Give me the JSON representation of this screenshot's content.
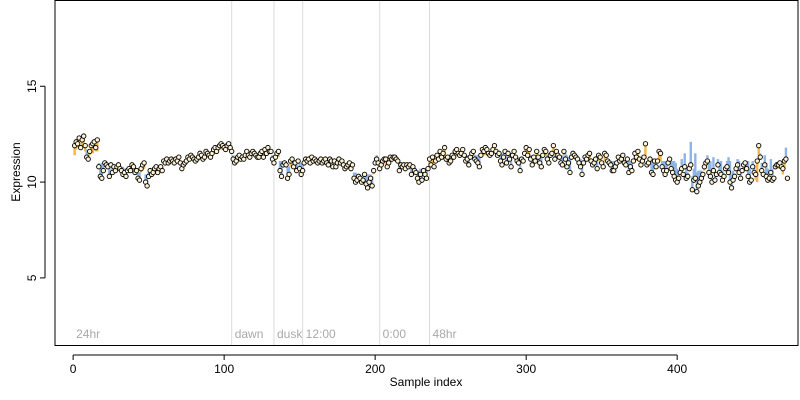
{
  "chart_data": {
    "type": "scatter",
    "xlabel": "Sample index",
    "ylabel": "Expression",
    "xlim": [
      -12,
      480
    ],
    "ylim": [
      1.5,
      19.5
    ],
    "x_ticks": [
      0,
      100,
      200,
      300,
      400
    ],
    "y_ticks": [
      5,
      10,
      15
    ],
    "grid": false,
    "legend": "none",
    "annotations": [
      {
        "label": "24hr",
        "x": 0
      },
      {
        "label": "dawn",
        "x": 105
      },
      {
        "label": "dusk",
        "x": 133
      },
      {
        "label": "12:00",
        "x": 152
      },
      {
        "label": "0:00",
        "x": 203
      },
      {
        "label": "48hr",
        "x": 236
      }
    ],
    "vlines": [
      105,
      133,
      152,
      203,
      236
    ],
    "colors": {
      "point_fill": "#fff4d6",
      "point_stroke": "#000000",
      "above_fill": "#f5b54a",
      "below_fill": "#8fb4e6",
      "vline": "#dcdcdc",
      "annotation": "#a9a9a9"
    },
    "series": [
      {
        "x_start": 1,
        "x_step": 1,
        "values": [
          11.9,
          12.1,
          12.0,
          12.3,
          11.8,
          12.2,
          12.4,
          11.9,
          11.3,
          11.2,
          11.6,
          11.9,
          12.0,
          12.1,
          11.8,
          12.2,
          10.8,
          10.3,
          10.2,
          10.6,
          11.0,
          10.9,
          10.8,
          10.3,
          10.9,
          10.5,
          10.8,
          10.6,
          10.8,
          10.9,
          10.7,
          10.6,
          10.4,
          10.5,
          10.3,
          10.6,
          10.7,
          10.6,
          10.9,
          10.8,
          10.5,
          10.6,
          10.2,
          10.1,
          10.7,
          10.9,
          11.0,
          10.0,
          9.8,
          10.3,
          10.6,
          10.4,
          10.5,
          10.7,
          10.8,
          10.5,
          10.7,
          10.8,
          10.6,
          11.1,
          11.0,
          11.2,
          11.0,
          11.1,
          11.2,
          11.1,
          11.0,
          11.2,
          11.1,
          11.3,
          11.0,
          10.7,
          10.9,
          11.0,
          11.1,
          11.3,
          11.2,
          11.4,
          11.3,
          11.2,
          11.1,
          11.2,
          11.3,
          11.5,
          11.4,
          11.2,
          11.3,
          11.6,
          11.5,
          11.4,
          11.3,
          11.5,
          11.7,
          11.8,
          11.6,
          11.8,
          11.9,
          12.0,
          11.9,
          11.8,
          11.7,
          11.9,
          12.0,
          11.8,
          11.6,
          11.2,
          11.0,
          11.1,
          11.3,
          11.4,
          11.2,
          11.3,
          11.2,
          11.4,
          11.6,
          11.4,
          11.3,
          11.5,
          11.6,
          11.5,
          11.4,
          11.3,
          11.3,
          11.5,
          11.6,
          11.3,
          11.7,
          11.5,
          11.8,
          11.6,
          11.6,
          11.2,
          11.0,
          11.3,
          11.5,
          11.6,
          10.6,
          10.3,
          10.9,
          11.0,
          10.9,
          10.2,
          10.4,
          11.1,
          11.2,
          10.8,
          11.0,
          10.6,
          11.1,
          10.7,
          10.4,
          10.6,
          11.0,
          11.2,
          11.1,
          11.2,
          11.0,
          11.3,
          11.1,
          11.2,
          11.1,
          11.0,
          11.1,
          11.2,
          11.0,
          11.1,
          11.2,
          11.0,
          10.9,
          11.2,
          11.1,
          10.8,
          11.1,
          10.8,
          11.0,
          11.2,
          11.0,
          11.1,
          10.9,
          10.7,
          10.8,
          10.9,
          11.0,
          10.7,
          10.9,
          10.2,
          10.0,
          10.1,
          10.3,
          10.2,
          10.0,
          10.1,
          10.4,
          9.9,
          9.7,
          10.0,
          10.2,
          9.8,
          10.6,
          11.0,
          11.2,
          11.0,
          10.7,
          10.9,
          11.1,
          11.2,
          11.2,
          10.8,
          11.0,
          11.3,
          11.2,
          11.3,
          11.3,
          11.2,
          11.1,
          10.6,
          10.9,
          10.8,
          10.9,
          10.7,
          10.9,
          10.8,
          10.9,
          10.4,
          10.8,
          10.6,
          10.5,
          10.2,
          10.0,
          10.4,
          10.1,
          10.6,
          10.4,
          10.2,
          10.7,
          11.2,
          10.9,
          11.3,
          10.8,
          11.1,
          11.4,
          11.2,
          11.6,
          11.3,
          11.5,
          11.8,
          11.2,
          11.3,
          11.0,
          11.1,
          11.4,
          11.3,
          11.6,
          11.7,
          11.5,
          11.4,
          11.5,
          11.7,
          11.4,
          11.1,
          11.2,
          10.9,
          11.3,
          11.5,
          11.6,
          11.2,
          11.1,
          11.0,
          10.8,
          11.4,
          11.7,
          11.6,
          11.8,
          11.7,
          11.5,
          11.4,
          11.5,
          11.7,
          11.9,
          11.6,
          11.4,
          11.5,
          11.1,
          10.9,
          11.3,
          11.6,
          11.0,
          11.5,
          11.2,
          10.8,
          11.4,
          11.6,
          11.3,
          11.1,
          11.0,
          10.6,
          11.2,
          11.1,
          11.5,
          11.8,
          11.4,
          11.7,
          11.2,
          10.9,
          11.3,
          11.1,
          11.6,
          11.3,
          11.0,
          10.8,
          11.4,
          11.7,
          11.6,
          11.2,
          11.0,
          11.4,
          11.5,
          11.9,
          11.2,
          11.6,
          11.4,
          11.3,
          11.0,
          10.9,
          11.6,
          11.2,
          10.8,
          11.0,
          10.5,
          11.3,
          11.5,
          11.4,
          11.3,
          11.2,
          11.0,
          10.8,
          10.4,
          11.0,
          11.3,
          11.2,
          11.4,
          11.5,
          11.1,
          10.9,
          11.0,
          11.2,
          10.7,
          11.4,
          11.3,
          11.0,
          10.8,
          11.5,
          11.4,
          11.1,
          11.0,
          10.9,
          10.6,
          10.6,
          10.8,
          11.0,
          11.3,
          11.1,
          11.2,
          11.4,
          11.0,
          10.9,
          11.2,
          10.5,
          10.8,
          10.6,
          11.1,
          11.5,
          11.3,
          11.6,
          11.2,
          10.9,
          11.1,
          11.3,
          12.0,
          10.9,
          11.0,
          11.2,
          10.5,
          10.4,
          11.1,
          10.8,
          11.1,
          11.6,
          11.5,
          10.8,
          10.6,
          10.4,
          10.6,
          11.0,
          11.2,
          10.7,
          10.5,
          10.3,
          10.1,
          10.0,
          10.2,
          10.5,
          10.7,
          10.4,
          10.8,
          10.2,
          10.3,
          10.7,
          10.9,
          9.6,
          10.1,
          10.2,
          9.5,
          9.8,
          10.0,
          10.2,
          10.4,
          10.8,
          11.0,
          11.1,
          10.5,
          10.3,
          10.0,
          10.6,
          10.1,
          10.4,
          10.9,
          10.5,
          10.4,
          10.1,
          10.3,
          10.7,
          10.8,
          10.5,
          10.0,
          9.7,
          10.1,
          10.3,
          10.7,
          10.9,
          10.5,
          10.2,
          10.6,
          10.9,
          11.0,
          10.7,
          10.3,
          10.0,
          10.1,
          10.8,
          10.5,
          10.4,
          11.1,
          11.9,
          11.3,
          10.6,
          10.4,
          10.9,
          10.3,
          10.1,
          10.2,
          10.5,
          10.1,
          10.2,
          10.8,
          10.9,
          10.9,
          11.0,
          10.8,
          10.7,
          11.1,
          11.2,
          10.2
        ],
        "base_offsets": [
          -0.5,
          -0.4,
          -0.2,
          -0.3,
          -0.1,
          -0.4,
          -0.6,
          -0.3,
          0.4,
          0.3,
          -0.2,
          -0.4,
          -0.5,
          -0.3,
          -0.2,
          -0.6,
          0.2,
          0.6,
          0.8,
          0.4,
          0.1,
          0.0,
          0.2,
          0.5,
          -0.1,
          0.3,
          0.0,
          0.1,
          0.0,
          -0.1,
          0.1,
          0.2,
          0.4,
          0.2,
          0.4,
          0.1,
          0.0,
          0.1,
          -0.2,
          -0.1,
          0.2,
          0.1,
          0.3,
          0.4,
          -0.2,
          -0.3,
          -0.3,
          0.4,
          0.5,
          0.2,
          0.0,
          0.1,
          0.0,
          -0.1,
          -0.2,
          0.1,
          0.0,
          -0.1,
          0.2,
          -0.1,
          0.0,
          -0.1,
          0.1,
          0.0,
          -0.1,
          0.0,
          0.1,
          -0.1,
          0.0,
          -0.2,
          0.1,
          0.3,
          0.1,
          0.0,
          0.0,
          -0.1,
          0.0,
          -0.2,
          0.0,
          0.1,
          0.2,
          0.1,
          0.0,
          -0.2,
          0.0,
          0.2,
          0.1,
          -0.2,
          -0.1,
          0.0,
          0.1,
          0.0,
          -0.2,
          -0.3,
          0.0,
          -0.1,
          -0.2,
          -0.3,
          -0.1,
          0.0,
          0.1,
          -0.1,
          -0.2,
          0.0,
          0.2,
          0.2,
          0.3,
          0.2,
          0.0,
          -0.1,
          0.1,
          0.0,
          0.1,
          -0.1,
          -0.2,
          0.0,
          0.1,
          -0.1,
          -0.1,
          0.0,
          0.1,
          0.1,
          0.1,
          0.0,
          -0.1,
          0.2,
          -0.2,
          0.0,
          -0.2,
          0.0,
          0.0,
          0.2,
          0.3,
          0.0,
          -0.2,
          -0.3,
          0.5,
          0.8,
          0.1,
          0.0,
          0.0,
          0.6,
          0.4,
          -0.3,
          -0.4,
          0.0,
          -0.2,
          0.3,
          -0.1,
          0.3,
          0.6,
          0.3,
          0.0,
          -0.2,
          0.0,
          -0.1,
          0.1,
          -0.2,
          0.0,
          -0.1,
          0.0,
          0.1,
          0.0,
          -0.1,
          0.1,
          0.0,
          -0.1,
          0.1,
          0.2,
          -0.1,
          0.0,
          0.2,
          0.0,
          0.2,
          0.0,
          -0.2,
          0.0,
          -0.1,
          0.1,
          0.2,
          0.1,
          0.0,
          -0.1,
          0.1,
          0.0,
          0.3,
          0.5,
          0.3,
          0.1,
          0.2,
          0.3,
          0.3,
          0.1,
          0.5,
          0.7,
          0.4,
          0.2,
          0.5,
          -0.2,
          0.3,
          0.2,
          0.1,
          0.3,
          0.0,
          -0.2,
          -0.2,
          -0.3,
          0.1,
          0.0,
          -0.2,
          -0.1,
          -0.2,
          -0.2,
          -0.1,
          0.0,
          0.4,
          0.1,
          0.2,
          0.0,
          0.2,
          0.0,
          0.1,
          0.0,
          0.4,
          0.0,
          0.2,
          0.2,
          0.4,
          0.6,
          0.3,
          0.5,
          0.0,
          0.3,
          0.5,
          0.0,
          -0.3,
          0.0,
          -0.4,
          0.1,
          -0.1,
          -0.3,
          -0.1,
          -0.4,
          -0.1,
          -0.3,
          -0.5,
          0.1,
          0.0,
          0.3,
          0.2,
          -0.1,
          0.0,
          -0.3,
          -0.3,
          -0.1,
          0.0,
          -0.1,
          -0.3,
          0.0,
          0.3,
          0.2,
          0.5,
          0.1,
          -0.1,
          -0.2,
          0.2,
          0.3,
          0.4,
          0.6,
          0.0,
          -0.3,
          -0.2,
          -0.4,
          -0.2,
          0.0,
          0.1,
          0.0,
          -0.2,
          -0.4,
          -0.1,
          0.1,
          0.0,
          0.4,
          0.6,
          0.2,
          -0.1,
          0.5,
          0.0,
          0.3,
          0.6,
          -0.1,
          -0.3,
          0.0,
          0.2,
          0.3,
          0.5,
          -0.1,
          0.1,
          0.0,
          -0.4,
          -0.1,
          -0.3,
          0.2,
          0.5,
          0.1,
          0.3,
          -0.2,
          0.1,
          0.4,
          0.6,
          0.0,
          -0.3,
          -0.2,
          0.2,
          0.4,
          0.0,
          -0.1,
          -0.5,
          0.2,
          -0.2,
          0.0,
          0.1,
          0.4,
          0.5,
          -0.2,
          0.3,
          0.6,
          0.3,
          0.8,
          -0.1,
          -0.3,
          -0.2,
          -0.1,
          0.0,
          0.2,
          0.4,
          0.7,
          0.1,
          -0.2,
          -0.1,
          -0.3,
          -0.4,
          0.0,
          0.2,
          0.1,
          -0.1,
          0.4,
          -0.3,
          -0.2,
          0.1,
          0.3,
          -0.4,
          -0.3,
          0.0,
          0.1,
          0.2,
          0.5,
          0.5,
          0.3,
          0.1,
          -0.2,
          0.0,
          -0.1,
          -0.3,
          0.1,
          0.2,
          -0.1,
          0.6,
          0.3,
          0.5,
          0.0,
          -0.4,
          -0.2,
          -0.5,
          -0.1,
          0.2,
          0.0,
          -0.2,
          -0.8,
          0.2,
          0.1,
          -0.1,
          0.6,
          0.7,
          0.0,
          0.3,
          0.0,
          -0.5,
          -0.4,
          0.3,
          0.5,
          0.7,
          0.5,
          0.1,
          -0.1,
          0.4,
          0.6,
          0.8,
          0.9,
          0.7,
          0.4,
          0.2,
          0.5,
          0.1,
          0.7,
          0.6,
          0.2,
          0.0,
          1.2,
          0.7,
          0.6,
          1.3,
          1.0,
          0.8,
          0.6,
          0.4,
          0.0,
          -0.2,
          -0.3,
          0.3,
          0.5,
          0.8,
          0.2,
          0.7,
          0.4,
          -0.1,
          0.3,
          0.4,
          0.7,
          0.5,
          0.1,
          0.0,
          0.3,
          0.8,
          1.1,
          0.7,
          0.5,
          0.1,
          -0.1,
          0.3,
          0.6,
          0.2,
          -0.1,
          -0.2,
          0.1,
          0.4,
          0.8,
          0.7,
          0.0,
          0.3,
          0.4,
          -0.3,
          -1.1,
          -0.5,
          0.2,
          0.4,
          -0.1,
          0.5,
          0.7,
          0.6,
          0.3,
          0.7,
          0.6,
          0.0,
          -0.1,
          -0.1,
          -0.2,
          0.0,
          0.1,
          -0.3,
          -0.4,
          0.6
        ]
      }
    ]
  }
}
